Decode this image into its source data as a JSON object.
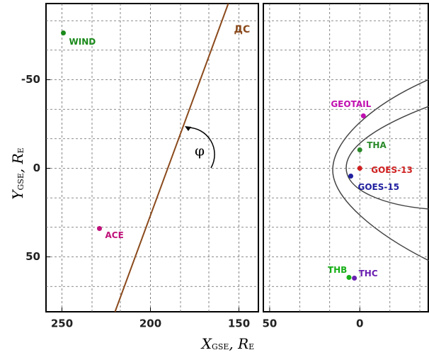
{
  "chart_data": [
    {
      "type": "scatter",
      "ylim": [
        -93,
        81
      ],
      "xlim": [
        259,
        139
      ],
      "yticks": [
        -50,
        0,
        50
      ],
      "xticks": [
        250,
        200,
        150
      ],
      "minor_xticks": [
        233,
        217,
        183,
        167
      ],
      "minor_yticks": [
        -83.3,
        -66.7,
        -33.3,
        -16.7,
        16.7,
        33.3,
        66.7
      ],
      "grid": true,
      "y_label": {
        "main": "Y",
        "sub": "GSE",
        "sep": ", ",
        "unit": "R",
        "unit_sub": "E"
      },
      "x_label": {
        "main": "X",
        "sub": "GSE",
        "sep": ", ",
        "unit": "R",
        "unit_sub": "E"
      },
      "angle_label": "φ",
      "line": {
        "name": "ДС",
        "color": "#8b4a1c",
        "x": [
          220,
          156
        ],
        "y": [
          81,
          -93
        ]
      },
      "series": [
        {
          "name": "WIND",
          "color": "#1a8a1a",
          "x": [
            249.2
          ],
          "values": [
            -76.4
          ]
        },
        {
          "name": "ACE",
          "color": "#c0107a",
          "x": [
            228.8
          ],
          "values": [
            34
          ]
        }
      ]
    },
    {
      "type": "scatter",
      "ylim": [
        -93,
        81
      ],
      "xlim": [
        53.5,
        -38
      ],
      "xticks": [
        50,
        0
      ],
      "minor_xticks": [
        33.3,
        16.7,
        -16.7,
        -33.3
      ],
      "minor_yticks": [
        -83.3,
        -66.7,
        -50,
        -33.3,
        -16.7,
        0,
        16.7,
        33.3,
        50,
        66.7
      ],
      "grid": true,
      "series": [
        {
          "name": "GEOTAIL",
          "color": "#c010b0",
          "x": [
            -2
          ],
          "values": [
            -29.6
          ]
        },
        {
          "name": "THA",
          "color": "#2a8a2a",
          "x": [
            0
          ],
          "values": [
            -10.4
          ]
        },
        {
          "name": "GOES-13",
          "color": "#d02020",
          "x": [
            0
          ],
          "values": [
            0
          ]
        },
        {
          "name": "GOES-15",
          "color": "#2020a0",
          "x": [
            5
          ],
          "values": [
            4.4
          ]
        },
        {
          "name": "THB",
          "color": "#18b018",
          "x": [
            6
          ],
          "values": [
            61.6
          ]
        },
        {
          "name": "THC",
          "color": "#6a20b0",
          "x": [
            3
          ],
          "values": [
            62
          ]
        }
      ]
    }
  ]
}
